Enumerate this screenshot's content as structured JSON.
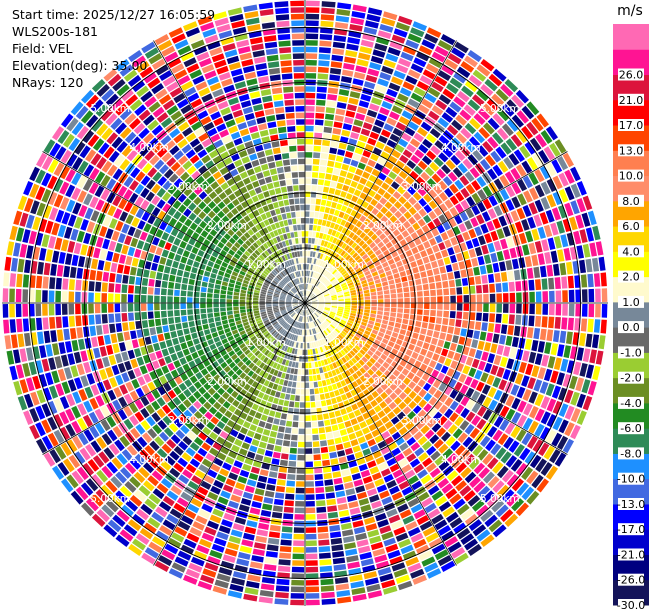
{
  "info": {
    "start_time": "Start time: 2025/12/27 16:05:59",
    "station": "WLS200s-181",
    "field": "Field: VEL",
    "elevation": "Elevation(deg): 35.00",
    "nrays": "NRays: 120"
  },
  "chart_data": {
    "type": "heatmap",
    "projection": "polar-ppi",
    "field": "VEL",
    "units": "m/s",
    "n_rays": 120,
    "range_rings_km": [
      1.0,
      2.0,
      3.0,
      4.0,
      5.0
    ],
    "ring_labels": [
      "1.00km",
      "2.00km",
      "3.00km",
      "4.00km",
      "5.00km"
    ],
    "max_range_km": 5.5,
    "colorbar": {
      "title": "m/s",
      "levels": [
        -30.0,
        -26.0,
        -21.0,
        -17.0,
        -13.0,
        -10.0,
        -8.0,
        -6.0,
        -4.0,
        -2.0,
        -1.0,
        0.0,
        1.0,
        2.0,
        4.0,
        6.0,
        8.0,
        10.0,
        13.0,
        17.0,
        21.0,
        26.0
      ],
      "tick_labels": [
        "-30.0",
        "-26.0",
        "-21.0",
        "-17.0",
        "-13.0",
        "-10.0",
        "-8.0",
        "-6.0",
        "-4.0",
        "-2.0",
        "-1.0",
        "0.0",
        "1.0",
        "2.0",
        "4.0",
        "6.0",
        "8.0",
        "10.0",
        "13.0",
        "17.0",
        "21.0",
        "26.0"
      ],
      "colors": [
        "#14145a",
        "#000080",
        "#0000cd",
        "#0000ff",
        "#4169e1",
        "#1e90ff",
        "#2e8b57",
        "#228b22",
        "#6b8e23",
        "#9acd32",
        "#696969",
        "#778899",
        "#fffacd",
        "#ffff00",
        "#ffd700",
        "#ffa500",
        "#ff8c69",
        "#ff7f50",
        "#ff4500",
        "#ff0000",
        "#dc143c",
        "#ff1493",
        "#ff69b4"
      ]
    }
  }
}
